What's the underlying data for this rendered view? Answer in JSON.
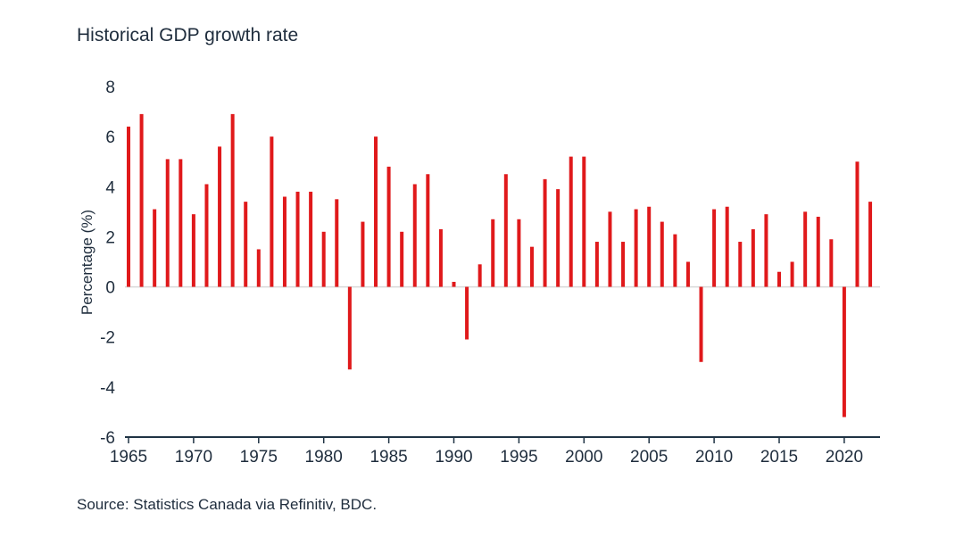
{
  "chart_data": {
    "type": "bar",
    "title": "Historical GDP growth rate",
    "ylabel": "Percentage (%)",
    "xlabel": "",
    "source": "Source: Statistics Canada via Refinitiv, BDC.",
    "bar_color": "#e0191b",
    "axis_color": "#1f3344",
    "zero_line_color": "#d8d8d8",
    "grid": false,
    "legend": "none",
    "ylim": [
      -6,
      8
    ],
    "yticks": [
      "8",
      "6",
      "4",
      "2",
      "0",
      "-2",
      "-4",
      "-6"
    ],
    "xticks": [
      "1965",
      "1970",
      "1975",
      "1980",
      "1985",
      "1990",
      "1995",
      "2000",
      "2005",
      "2010",
      "2015",
      "2020"
    ],
    "x": [
      1965,
      1966,
      1967,
      1968,
      1969,
      1970,
      1971,
      1972,
      1973,
      1974,
      1975,
      1976,
      1977,
      1978,
      1979,
      1980,
      1981,
      1982,
      1983,
      1984,
      1985,
      1986,
      1987,
      1988,
      1989,
      1990,
      1991,
      1992,
      1993,
      1994,
      1995,
      1996,
      1997,
      1998,
      1999,
      2000,
      2001,
      2002,
      2003,
      2004,
      2005,
      2006,
      2007,
      2008,
      2009,
      2010,
      2011,
      2012,
      2013,
      2014,
      2015,
      2016,
      2017,
      2018,
      2019,
      2020,
      2021,
      2022
    ],
    "values": [
      6.4,
      6.9,
      3.1,
      5.1,
      5.1,
      2.9,
      4.1,
      5.6,
      6.9,
      3.4,
      1.5,
      6.0,
      3.6,
      3.8,
      3.8,
      2.2,
      3.5,
      -3.3,
      2.6,
      6.0,
      4.8,
      2.2,
      4.1,
      4.5,
      2.3,
      0.2,
      -2.1,
      0.9,
      2.7,
      4.5,
      2.7,
      1.6,
      4.3,
      3.9,
      5.2,
      5.2,
      1.8,
      3.0,
      1.8,
      3.1,
      3.2,
      2.6,
      2.1,
      1.0,
      -3.0,
      3.1,
      3.2,
      1.8,
      2.3,
      2.9,
      0.6,
      1.0,
      3.0,
      2.8,
      1.9,
      -5.2,
      5.0,
      3.4
    ]
  }
}
